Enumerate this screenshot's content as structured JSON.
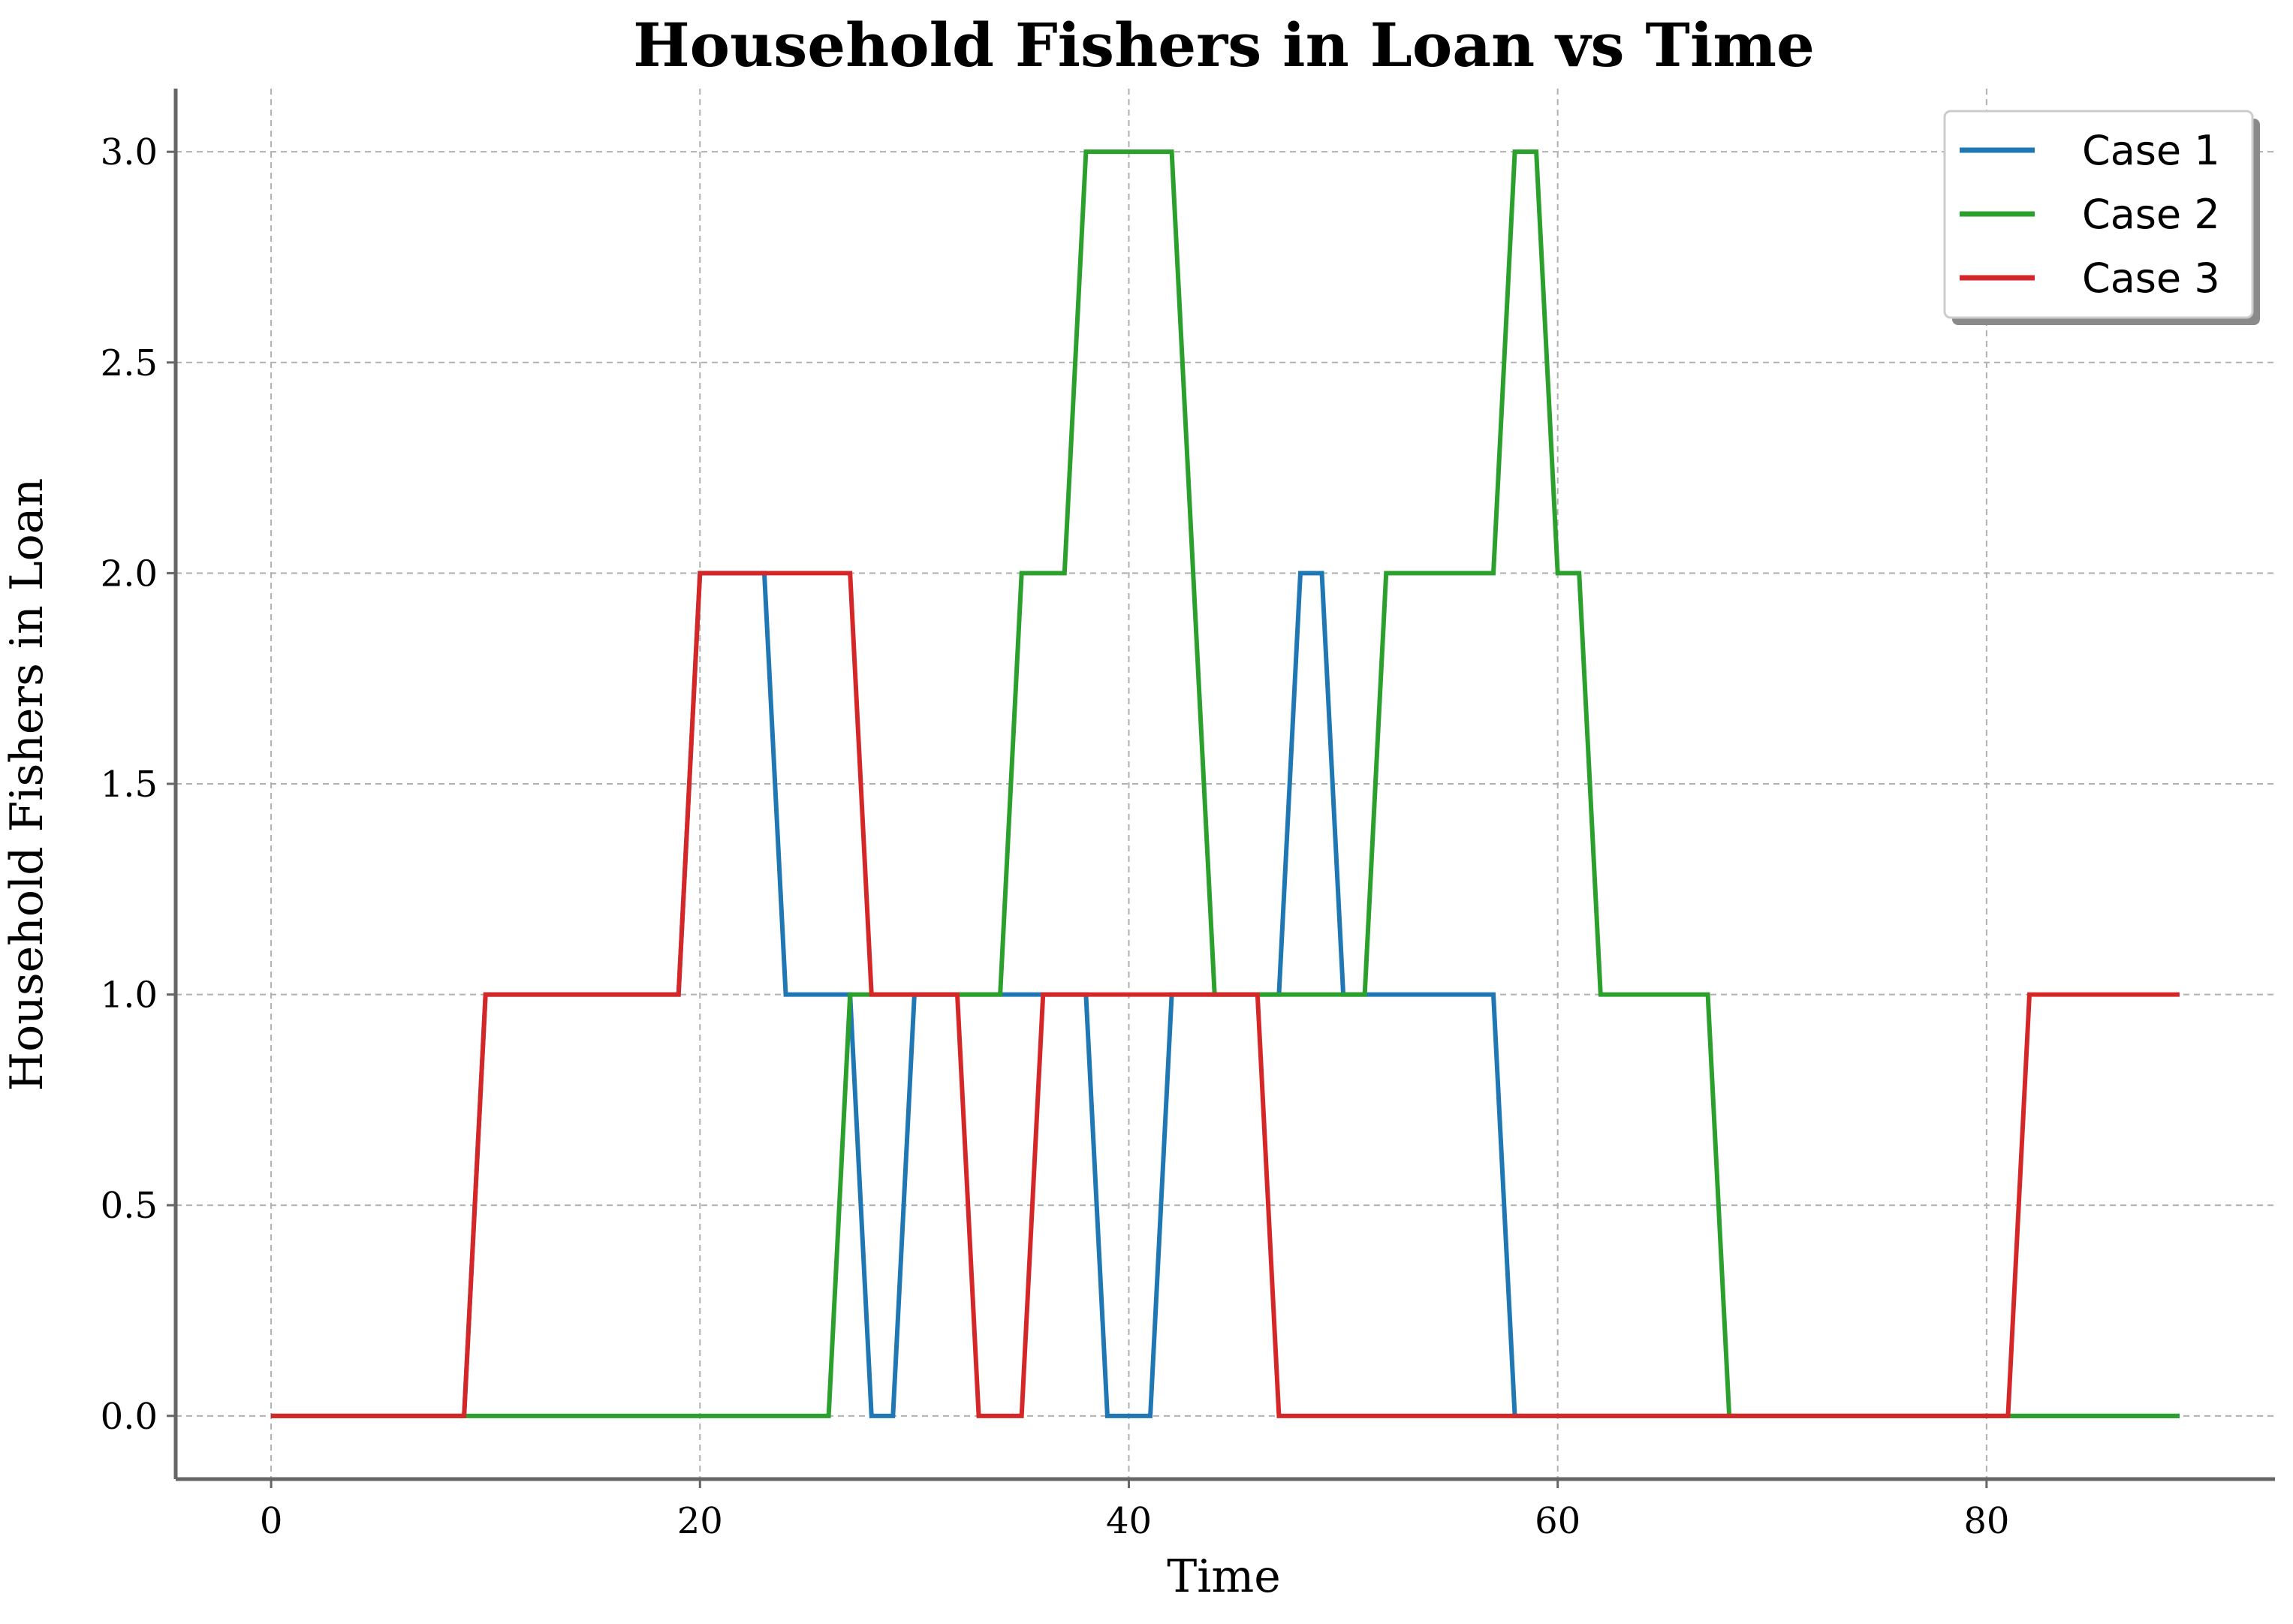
{
  "chart_data": {
    "type": "line",
    "title": "Household Fishers in Loan vs Time",
    "xlabel": "Time",
    "ylabel": "Household Fishers in Loan",
    "xlim": [
      -4.45,
      93.45
    ],
    "ylim": [
      -0.15,
      3.15
    ],
    "xticks": [
      0,
      20,
      40,
      60,
      80
    ],
    "yticks": [
      0.0,
      0.5,
      1.0,
      1.5,
      2.0,
      2.5,
      3.0
    ],
    "xtick_labels": [
      "0",
      "20",
      "40",
      "60",
      "80"
    ],
    "ytick_labels": [
      "0.0",
      "0.5",
      "1.0",
      "1.5",
      "2.0",
      "2.5",
      "3.0"
    ],
    "grid": true,
    "legend_position": "top-right",
    "series": [
      {
        "name": "Case 1",
        "color": "#1f77b4",
        "x": [
          0,
          9,
          10,
          19,
          20,
          23,
          24,
          27,
          28,
          29,
          30,
          38,
          39,
          41,
          42,
          47,
          48,
          49,
          50,
          57,
          58,
          89
        ],
        "y": [
          0,
          0,
          1,
          1,
          2,
          2,
          1,
          1,
          0,
          0,
          1,
          1,
          0,
          0,
          1,
          1,
          2,
          2,
          1,
          1,
          0,
          0
        ]
      },
      {
        "name": "Case 2",
        "color": "#2ca02c",
        "x": [
          0,
          26,
          27,
          34,
          35,
          37,
          38,
          42,
          43,
          44,
          51,
          52,
          57,
          58,
          59,
          60,
          61,
          62,
          67,
          68,
          89
        ],
        "y": [
          0,
          0,
          1,
          1,
          2,
          2,
          3,
          3,
          2,
          1,
          1,
          2,
          2,
          3,
          3,
          2,
          2,
          1,
          1,
          0,
          0
        ]
      },
      {
        "name": "Case 3",
        "color": "#d62728",
        "x": [
          0,
          9,
          10,
          19,
          20,
          27,
          28,
          32,
          33,
          35,
          36,
          46,
          47,
          81,
          82,
          89
        ],
        "y": [
          0,
          0,
          1,
          1,
          2,
          2,
          1,
          1,
          0,
          0,
          1,
          1,
          0,
          0,
          1,
          1
        ]
      }
    ]
  }
}
